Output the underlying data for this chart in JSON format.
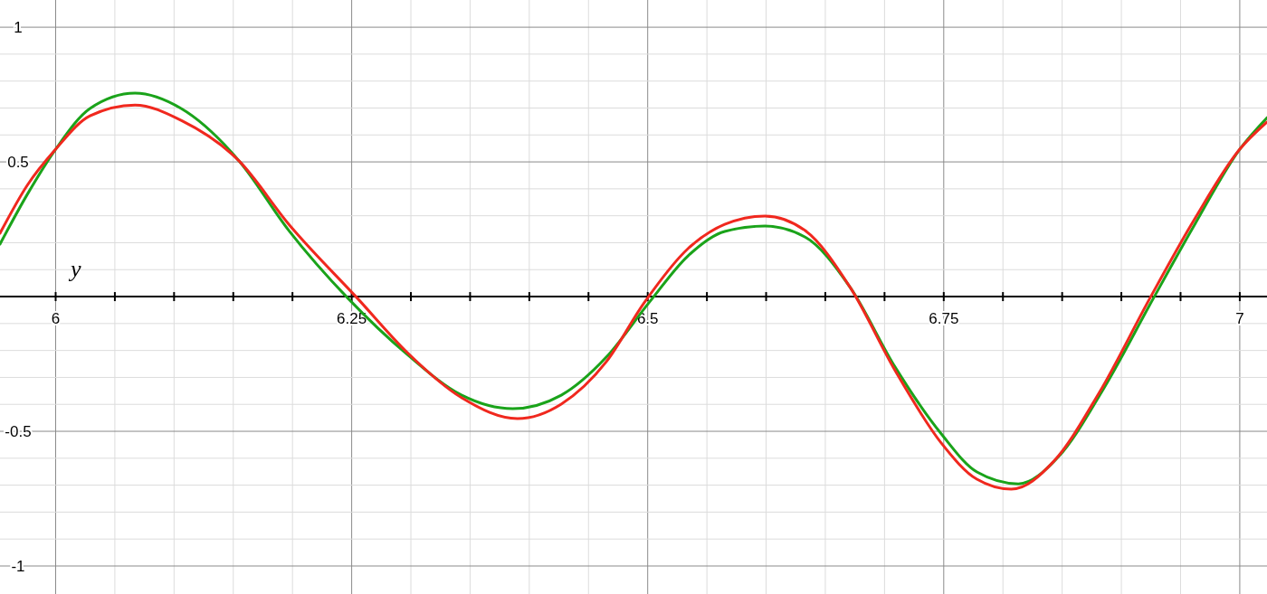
{
  "chart_data": {
    "type": "line",
    "ylabel": "y",
    "xlim": [
      5.953,
      7.023
    ],
    "ylim": [
      -1.104,
      1.101
    ],
    "xticks": [
      6,
      {
        "value": 6.05,
        "label": null
      },
      {
        "value": 6.1,
        "label": null
      },
      {
        "value": 6.15,
        "label": null
      },
      {
        "value": 6.2,
        "label": null
      },
      6.25,
      {
        "value": 6.3,
        "label": null
      },
      {
        "value": 6.35,
        "label": null
      },
      {
        "value": 6.4,
        "label": null
      },
      {
        "value": 6.45,
        "label": null
      },
      6.5,
      {
        "value": 6.55,
        "label": null
      },
      {
        "value": 6.6,
        "label": null
      },
      {
        "value": 6.65,
        "label": null
      },
      {
        "value": 6.7,
        "label": null
      },
      6.75,
      {
        "value": 6.8,
        "label": null
      },
      {
        "value": 6.85,
        "label": null
      },
      {
        "value": 6.9,
        "label": null
      },
      {
        "value": 6.95,
        "label": null
      },
      7
    ],
    "yticks": [
      -1,
      {
        "value": -0.9,
        "label": null
      },
      {
        "value": -0.8,
        "label": null
      },
      {
        "value": -0.7,
        "label": null
      },
      {
        "value": -0.6,
        "label": null
      },
      -0.5,
      {
        "value": -0.4,
        "label": null
      },
      {
        "value": -0.3,
        "label": null
      },
      {
        "value": -0.2,
        "label": null
      },
      {
        "value": -0.1,
        "label": null
      },
      {
        "value": 0.1,
        "label": null
      },
      {
        "value": 0.2,
        "label": null
      },
      {
        "value": 0.3,
        "label": null
      },
      {
        "value": 0.4,
        "label": null
      },
      0.5,
      {
        "value": 0.6,
        "label": null
      },
      {
        "value": 0.7,
        "label": null
      },
      {
        "value": 0.8,
        "label": null
      },
      {
        "value": 0.9,
        "label": null
      },
      1
    ],
    "grid": true,
    "marker": "none",
    "line_style": "solid",
    "series": [
      {
        "color": "#1aa31a",
        "x": [
          5.953,
          5.976,
          6.0,
          6.029,
          6.067,
          6.106,
          6.155,
          6.197,
          6.247,
          6.297,
          6.343,
          6.386,
          6.427,
          6.465,
          6.501,
          6.534,
          6.565,
          6.599,
          6.633,
          6.671,
          6.709,
          6.748,
          6.778,
          6.813,
          6.847,
          6.885,
          6.927,
          6.962,
          7.0,
          7.023
        ],
        "values": [
          0.195,
          0.379,
          0.547,
          0.698,
          0.755,
          0.698,
          0.503,
          0.245,
          -0.007,
          -0.215,
          -0.366,
          -0.416,
          -0.366,
          -0.225,
          -0.023,
          0.151,
          0.242,
          0.262,
          0.221,
          0.034,
          -0.262,
          -0.51,
          -0.651,
          -0.695,
          -0.594,
          -0.342,
          -0.007,
          0.268,
          0.547,
          0.664
        ]
      },
      {
        "color": "#f0281e",
        "x": [
          5.953,
          5.976,
          6.0,
          6.029,
          6.067,
          6.106,
          6.155,
          6.197,
          6.255,
          6.297,
          6.343,
          6.39,
          6.427,
          6.465,
          6.497,
          6.534,
          6.565,
          6.599,
          6.633,
          6.671,
          6.709,
          6.748,
          6.778,
          6.807,
          6.843,
          6.881,
          6.924,
          6.962,
          7.0,
          7.023
        ],
        "values": [
          0.235,
          0.413,
          0.547,
          0.671,
          0.711,
          0.654,
          0.503,
          0.268,
          -0.007,
          -0.208,
          -0.376,
          -0.453,
          -0.399,
          -0.242,
          -0.023,
          0.178,
          0.268,
          0.299,
          0.245,
          0.034,
          -0.275,
          -0.544,
          -0.678,
          -0.715,
          -0.611,
          -0.359,
          -0.007,
          0.289,
          0.547,
          0.648
        ]
      }
    ]
  }
}
